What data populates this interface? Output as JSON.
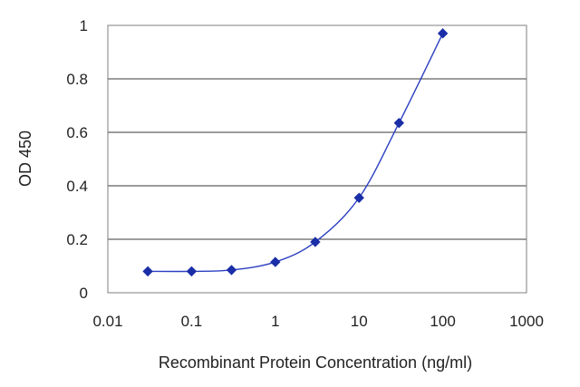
{
  "chart_data": {
    "type": "scatter",
    "title": "",
    "xlabel": "Recombinant Protein Concentration (ng/ml)",
    "ylabel": "OD 450",
    "x_scale": "log",
    "xlim": [
      0.01,
      1000
    ],
    "ylim": [
      0,
      1
    ],
    "xticks": [
      0.01,
      0.1,
      1,
      10,
      100,
      1000
    ],
    "xtick_labels": [
      "0.01",
      "0.1",
      "1",
      "10",
      "100",
      "1000"
    ],
    "yticks": [
      0,
      0.2,
      0.4,
      0.6,
      0.8,
      1
    ],
    "ytick_labels": [
      "0",
      "0.2",
      "0.4",
      "0.6",
      "0.8",
      "1"
    ],
    "grid": "horizontal",
    "legend": "none",
    "series": [
      {
        "x": [
          0.03,
          0.1,
          0.3,
          1,
          3,
          10,
          30,
          100
        ],
        "y": [
          0.08,
          0.08,
          0.085,
          0.115,
          0.19,
          0.355,
          0.635,
          0.97
        ],
        "color": "#1a2ea8",
        "marker": "diamond",
        "fit_curve": true
      }
    ]
  }
}
